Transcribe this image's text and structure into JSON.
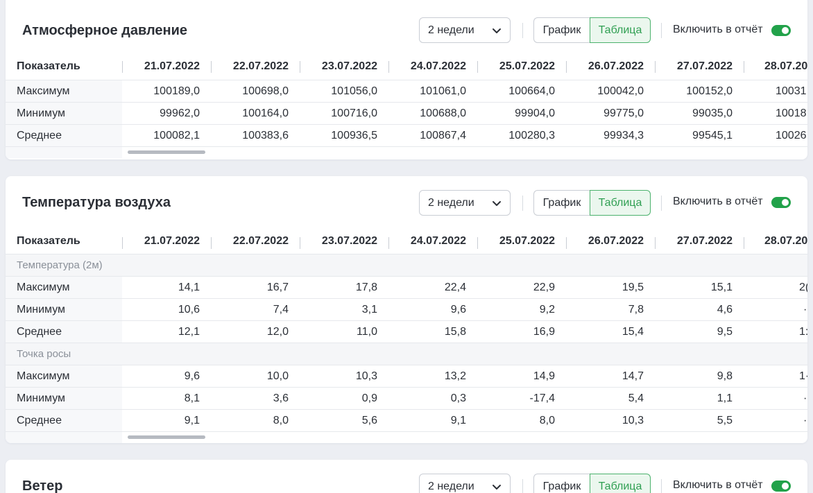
{
  "columns": [
    "21.07.2022",
    "22.07.2022",
    "23.07.2022",
    "24.07.2022",
    "25.07.2022",
    "26.07.2022",
    "27.07.2022",
    "28.07.20"
  ],
  "controls": {
    "period": "2 недели",
    "view_graph": "График",
    "view_table": "Таблица",
    "report_label": "Включить в отчёт",
    "report_enabled": true,
    "active_view": "Таблица"
  },
  "pressure": {
    "title": "Атмосферное давление",
    "header_label": "Показатель",
    "rows": [
      {
        "label": "Максимум",
        "values": [
          "100189,0",
          "100698,0",
          "101056,0",
          "101061,0",
          "100664,0",
          "100042,0",
          "100152,0",
          "10031"
        ]
      },
      {
        "label": "Минимум",
        "values": [
          "99962,0",
          "100164,0",
          "100716,0",
          "100688,0",
          "99904,0",
          "99775,0",
          "99035,0",
          "10018"
        ]
      },
      {
        "label": "Среднее",
        "values": [
          "100082,1",
          "100383,6",
          "100936,5",
          "100867,4",
          "100280,3",
          "99934,3",
          "99545,1",
          "10026"
        ]
      }
    ]
  },
  "temperature": {
    "title": "Температура воздуха",
    "header_label": "Показатель",
    "group1": "Температура (2м)",
    "group1_rows": [
      {
        "label": "Максимум",
        "values": [
          "14,1",
          "16,7",
          "17,8",
          "22,4",
          "22,9",
          "19,5",
          "15,1",
          "2("
        ]
      },
      {
        "label": "Минимум",
        "values": [
          "10,6",
          "7,4",
          "3,1",
          "9,6",
          "9,2",
          "7,8",
          "4,6",
          "·"
        ]
      },
      {
        "label": "Среднее",
        "values": [
          "12,1",
          "12,0",
          "11,0",
          "15,8",
          "16,9",
          "15,4",
          "9,5",
          "1:"
        ]
      }
    ],
    "group2": "Точка росы",
    "group2_rows": [
      {
        "label": "Максимум",
        "values": [
          "9,6",
          "10,0",
          "10,3",
          "13,2",
          "14,9",
          "14,7",
          "9,8",
          "1·"
        ]
      },
      {
        "label": "Минимум",
        "values": [
          "8,1",
          "3,6",
          "0,9",
          "0,3",
          "-17,4",
          "5,4",
          "1,1",
          "·"
        ]
      },
      {
        "label": "Среднее",
        "values": [
          "9,1",
          "8,0",
          "5,6",
          "9,1",
          "8,0",
          "10,3",
          "5,5",
          "·"
        ]
      }
    ]
  },
  "wind": {
    "title": "Ветер"
  }
}
